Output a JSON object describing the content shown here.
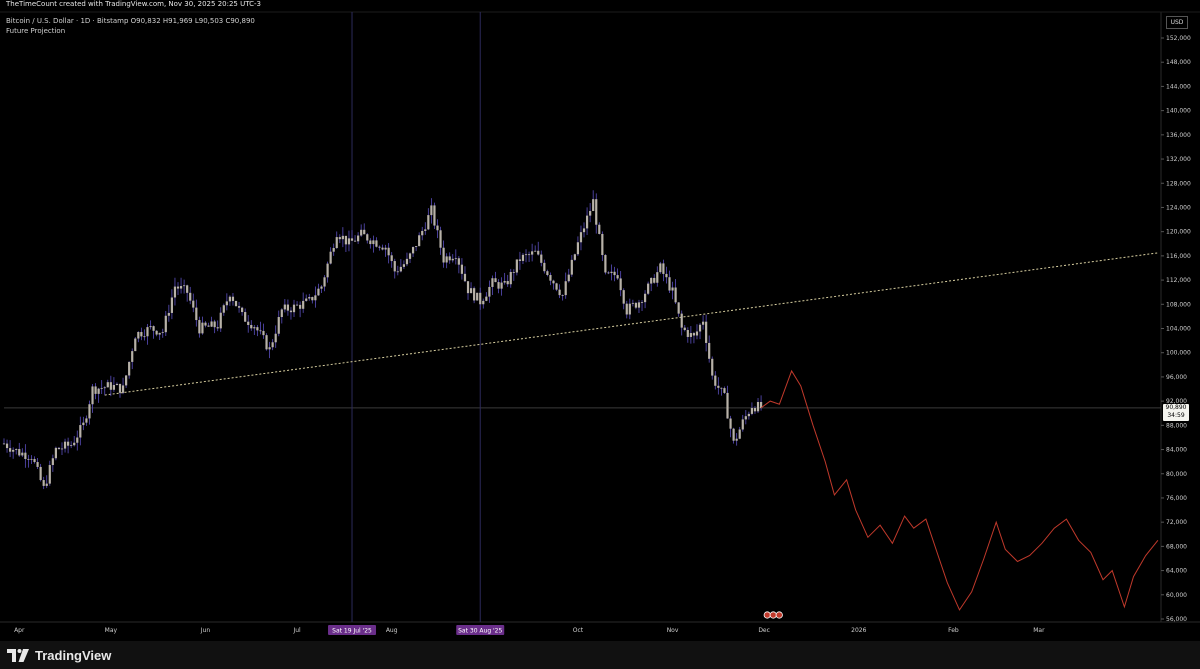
{
  "header": {
    "watermark": "TheTimeCount created with TradingView.com, Nov 30, 2025 20:25 UTC-3",
    "symbol_line": "Bitcoin / U.S. Dollar · 1D · Bitstamp  O90,832  H91,969  L90,503  C90,890",
    "indicator_line": "Future Projection"
  },
  "currency_label": "USD",
  "price_badge": {
    "price": "90,890",
    "countdown": "34:59"
  },
  "footer": {
    "brand": "TradingView"
  },
  "colors": {
    "background": "#000000",
    "candle": "#b8b2a8",
    "wick": "#5b4fbf",
    "projection": "#c0392b",
    "trendline": "#d8cfa0",
    "marker_bg": "#6a2e8a"
  },
  "chart_data": {
    "type": "candlestick",
    "title": "",
    "ylim": [
      56000,
      152000
    ],
    "y_ticks": [
      56000,
      60000,
      64000,
      68000,
      72000,
      76000,
      80000,
      84000,
      88000,
      92000,
      96000,
      100000,
      104000,
      108000,
      112000,
      116000,
      120000,
      124000,
      128000,
      132000,
      136000,
      140000,
      144000,
      148000,
      152000
    ],
    "y_tick_labels": [
      "56,000",
      "60,000",
      "64,000",
      "68,000",
      "72,000",
      "76,000",
      "80,000",
      "84,000",
      "88,000",
      "92,000",
      "96,000",
      "100,000",
      "104,000",
      "108,000",
      "112,000",
      "116,000",
      "120,000",
      "124,000",
      "128,000",
      "132,000",
      "136,000",
      "140,000",
      "144,000",
      "148,000",
      "152,000"
    ],
    "x_labels": [
      "Apr",
      "May",
      "Jun",
      "Jul",
      "Aug",
      "Oct",
      "Nov",
      "Dec",
      "2026",
      "Feb",
      "Mar"
    ],
    "x_label_dates": [
      "2025-04-01",
      "2025-05-01",
      "2025-06-01",
      "2025-07-01",
      "2025-08-01",
      "2025-10-01",
      "2025-11-01",
      "2025-12-01",
      "2026-01-01",
      "2026-02-01",
      "2026-03-01"
    ],
    "x_range": [
      "2025-03-27",
      "2026-04-10"
    ],
    "marker_labels": [
      {
        "date": "2025-07-19",
        "label": "Sat 19 Jul '25"
      },
      {
        "date": "2025-08-30",
        "label": "Sat 30 Aug '25"
      }
    ],
    "current_price": 90890,
    "price_path": [
      [
        "2025-03-27",
        85000
      ],
      [
        "2025-04-01",
        83500
      ],
      [
        "2025-04-05",
        83000
      ],
      [
        "2025-04-09",
        77500
      ],
      [
        "2025-04-13",
        84000
      ],
      [
        "2025-04-18",
        84800
      ],
      [
        "2025-04-22",
        88000
      ],
      [
        "2025-04-25",
        94000
      ],
      [
        "2025-05-01",
        94500
      ],
      [
        "2025-05-05",
        94000
      ],
      [
        "2025-05-09",
        103000
      ],
      [
        "2025-05-14",
        104000
      ],
      [
        "2025-05-18",
        103500
      ],
      [
        "2025-05-22",
        111000
      ],
      [
        "2025-05-26",
        110000
      ],
      [
        "2025-05-30",
        104000
      ],
      [
        "2025-06-05",
        104500
      ],
      [
        "2025-06-09",
        110000
      ],
      [
        "2025-06-13",
        106000
      ],
      [
        "2025-06-17",
        104500
      ],
      [
        "2025-06-22",
        100500
      ],
      [
        "2025-06-26",
        107000
      ],
      [
        "2025-06-30",
        107500
      ],
      [
        "2025-07-05",
        108500
      ],
      [
        "2025-07-09",
        111000
      ],
      [
        "2025-07-14",
        120000
      ],
      [
        "2025-07-18",
        118000
      ],
      [
        "2025-07-22",
        119500
      ],
      [
        "2025-07-26",
        118500
      ],
      [
        "2025-07-30",
        117500
      ],
      [
        "2025-08-02",
        113500
      ],
      [
        "2025-08-06",
        115000
      ],
      [
        "2025-08-10",
        119000
      ],
      [
        "2025-08-14",
        123500
      ],
      [
        "2025-08-18",
        115500
      ],
      [
        "2025-08-22",
        116500
      ],
      [
        "2025-08-26",
        110500
      ],
      [
        "2025-08-30",
        108500
      ],
      [
        "2025-09-03",
        111500
      ],
      [
        "2025-09-07",
        111000
      ],
      [
        "2025-09-12",
        115500
      ],
      [
        "2025-09-17",
        116500
      ],
      [
        "2025-09-22",
        112500
      ],
      [
        "2025-09-26",
        109500
      ],
      [
        "2025-10-01",
        118000
      ],
      [
        "2025-10-06",
        125000
      ],
      [
        "2025-10-10",
        112500
      ],
      [
        "2025-10-14",
        113000
      ],
      [
        "2025-10-17",
        107000
      ],
      [
        "2025-10-21",
        108500
      ],
      [
        "2025-10-25",
        111500
      ],
      [
        "2025-10-28",
        114000
      ],
      [
        "2025-11-01",
        110000
      ],
      [
        "2025-11-04",
        104000
      ],
      [
        "2025-11-08",
        102500
      ],
      [
        "2025-11-11",
        105500
      ],
      [
        "2025-11-14",
        96000
      ],
      [
        "2025-11-18",
        92500
      ],
      [
        "2025-11-21",
        85000
      ],
      [
        "2025-11-24",
        88500
      ],
      [
        "2025-11-27",
        91300
      ],
      [
        "2025-11-30",
        90890
      ]
    ],
    "projection_path": [
      [
        "2025-11-30",
        90890
      ],
      [
        "2025-12-03",
        92000
      ],
      [
        "2025-12-06",
        91500
      ],
      [
        "2025-12-10",
        97000
      ],
      [
        "2025-12-13",
        94500
      ],
      [
        "2025-12-17",
        88000
      ],
      [
        "2025-12-21",
        82000
      ],
      [
        "2025-12-24",
        76500
      ],
      [
        "2025-12-28",
        79000
      ],
      [
        "2025-12-31",
        74000
      ],
      [
        "2026-01-04",
        69500
      ],
      [
        "2026-01-08",
        71500
      ],
      [
        "2026-01-12",
        68500
      ],
      [
        "2026-01-16",
        73000
      ],
      [
        "2026-01-19",
        71000
      ],
      [
        "2026-01-23",
        72500
      ],
      [
        "2026-01-27",
        66500
      ],
      [
        "2026-01-30",
        62000
      ],
      [
        "2026-02-03",
        57500
      ],
      [
        "2026-02-07",
        60500
      ],
      [
        "2026-02-11",
        66000
      ],
      [
        "2026-02-15",
        72000
      ],
      [
        "2026-02-18",
        67500
      ],
      [
        "2026-02-22",
        65500
      ],
      [
        "2026-02-26",
        66500
      ],
      [
        "2026-03-02",
        68500
      ],
      [
        "2026-03-06",
        71000
      ],
      [
        "2026-03-10",
        72500
      ],
      [
        "2026-03-14",
        69000
      ],
      [
        "2026-03-18",
        67000
      ],
      [
        "2026-03-22",
        62500
      ],
      [
        "2026-03-25",
        64000
      ],
      [
        "2026-03-29",
        58000
      ],
      [
        "2026-04-01",
        63000
      ],
      [
        "2026-04-05",
        66500
      ],
      [
        "2026-04-09",
        69000
      ]
    ],
    "trendline": [
      [
        "2025-04-29",
        93000
      ],
      [
        "2026-04-09",
        116500
      ]
    ]
  }
}
